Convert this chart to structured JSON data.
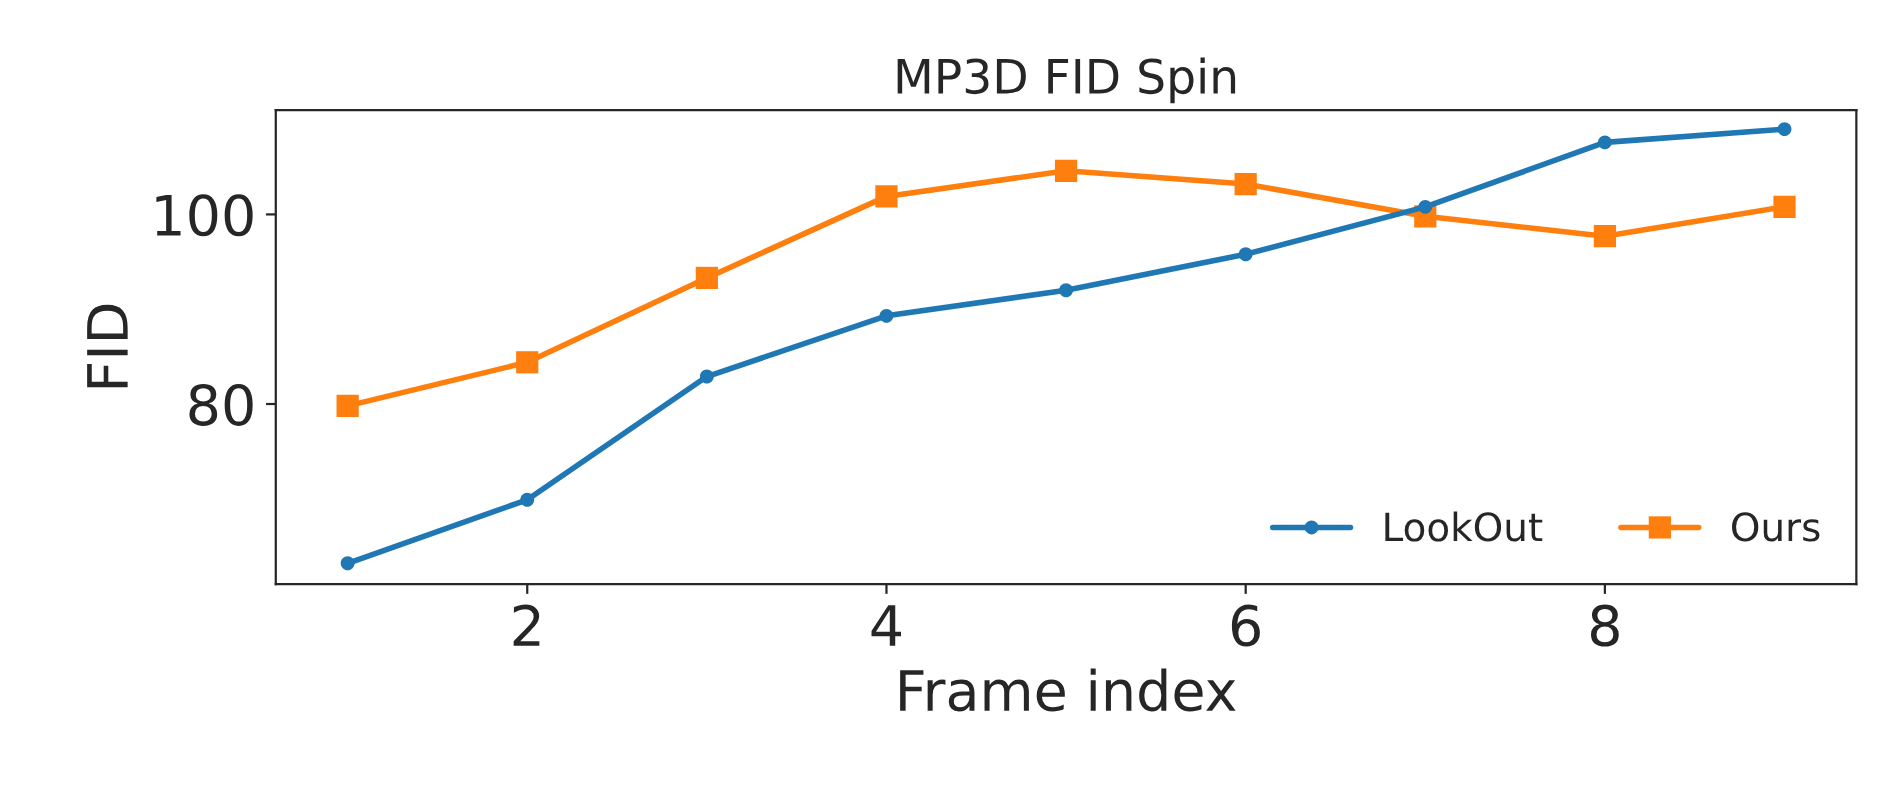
{
  "chart_data": {
    "type": "line",
    "title": "MP3D FID Spin",
    "xlabel": "Frame index",
    "ylabel": "FID",
    "x": [
      1,
      2,
      3,
      4,
      5,
      6,
      7,
      8,
      9
    ],
    "series": [
      {
        "name": "LookOut",
        "color": "#1f77b4",
        "marker": "circle",
        "values": [
          63.2,
          69.9,
          82.9,
          89.3,
          92.0,
          95.8,
          100.8,
          107.6,
          109.0
        ]
      },
      {
        "name": "Ours",
        "color": "#ff7f0e",
        "marker": "square",
        "values": [
          79.8,
          84.4,
          93.3,
          101.9,
          104.6,
          103.2,
          99.8,
          97.7,
          100.8
        ]
      }
    ],
    "xlim": [
      0.6,
      9.4
    ],
    "xticks": [
      2,
      4,
      6,
      8
    ],
    "ylim": [
      61,
      111
    ],
    "yticks": [
      80,
      100
    ],
    "grid": false,
    "legend": "bottom right",
    "line_style": "solid"
  }
}
